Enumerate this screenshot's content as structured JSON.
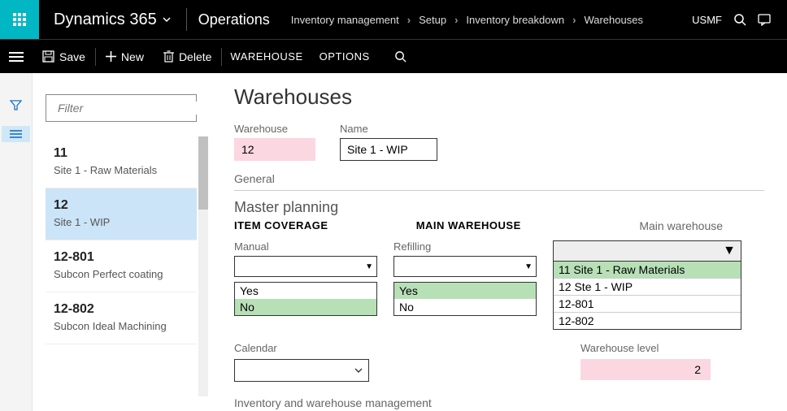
{
  "header": {
    "brand": "Dynamics 365",
    "module": "Operations",
    "breadcrumb": [
      "Inventory management",
      "Setup",
      "Inventory breakdown",
      "Warehouses"
    ],
    "company": "USMF"
  },
  "actionbar": {
    "save": "Save",
    "new": "New",
    "delete": "Delete",
    "tab_warehouse": "WAREHOUSE",
    "tab_options": "OPTIONS"
  },
  "filter": {
    "placeholder": "Filter"
  },
  "warehouses": [
    {
      "code": "11",
      "desc": "Site 1 - Raw Materials",
      "selected": false
    },
    {
      "code": "12",
      "desc": "Site 1 - WIP",
      "selected": true
    },
    {
      "code": "12-801",
      "desc": "Subcon Perfect coating",
      "selected": false
    },
    {
      "code": "12-802",
      "desc": "Subcon Ideal Machining",
      "selected": false
    }
  ],
  "detail": {
    "page_title": "Warehouses",
    "warehouse_label": "Warehouse",
    "warehouse_value": "12",
    "name_label": "Name",
    "name_value": "Site 1 - WIP",
    "general_section": "General",
    "master_planning": "Master planning",
    "item_coverage": "ITEM COVERAGE",
    "main_warehouse_head": "MAIN WAREHOUSE",
    "main_warehouse_label": "Main warehouse",
    "manual_label": "Manual",
    "manual_options": [
      "Yes",
      "No"
    ],
    "manual_selected": "No",
    "refilling_label": "Refilling",
    "refilling_options": [
      "Yes",
      "No"
    ],
    "refilling_selected": "Yes",
    "mw_options": [
      "11 Site 1 - Raw Materials",
      "12 Ste 1 - WIP",
      "12-801",
      "12-802"
    ],
    "mw_selected": "11 Site 1 - Raw Materials",
    "calendar_label": "Calendar",
    "warehouse_level_label": "Warehouse level",
    "warehouse_level_value": "2",
    "footer_section": "Inventory and warehouse management"
  },
  "colors": {
    "accent": "#00b7c3",
    "selection": "#cce4f7",
    "highlight_pink": "#fbd7e1",
    "option_green": "#b7e0b7"
  }
}
